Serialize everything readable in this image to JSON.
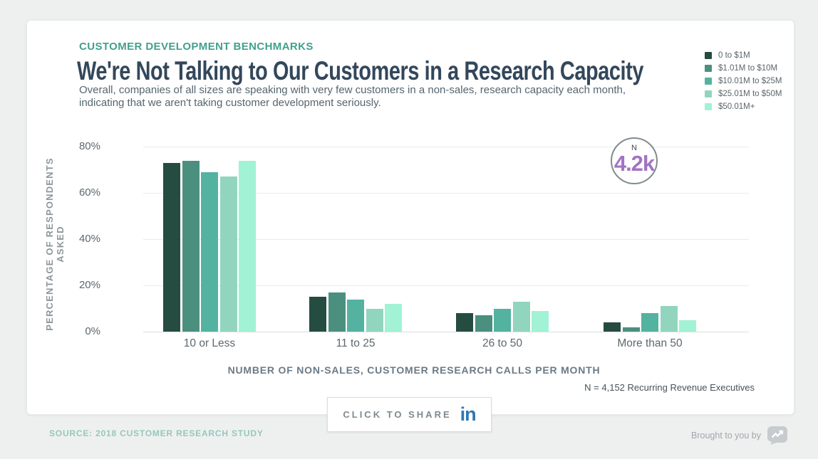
{
  "card": {
    "kicker": "CUSTOMER DEVELOPMENT BENCHMARKS",
    "title": "We're Not Talking to Our Customers in a Research Capacity",
    "subtitle_lines": [
      "Overall, companies of all sizes are speaking with very few customers in a non-sales, research capacity each month,",
      "indicating that we aren't taking customer development seriously."
    ]
  },
  "chart_data": {
    "type": "bar",
    "title": "We're Not Talking to Our Customers in a Research Capacity",
    "categories": [
      "10 or Less",
      "11 to 25",
      "26 to 50",
      "More than 50"
    ],
    "series": [
      {
        "name": "0 to $1M",
        "color": "#254c41",
        "values": [
          73,
          15,
          8,
          4
        ]
      },
      {
        "name": "$1.01M to $10M",
        "color": "#4b8f7f",
        "values": [
          74,
          17,
          7,
          2
        ]
      },
      {
        "name": "$10.01M to $25M",
        "color": "#54b2a1",
        "values": [
          69,
          14,
          10,
          8
        ]
      },
      {
        "name": "$25.01M to $50M",
        "color": "#92d5bf",
        "values": [
          67,
          10,
          13,
          11
        ]
      },
      {
        "name": "$50.01M+",
        "color": "#a2f2d5",
        "values": [
          74,
          12,
          9,
          5
        ]
      }
    ],
    "xlabel": "NUMBER OF NON-SALES, CUSTOMER RESEARCH CALLS PER MONTH",
    "ylabel": "PERCENTAGE OF RESPONDENTS ASKED",
    "ylim": [
      0,
      80
    ],
    "yticks": [
      "0%",
      "20%",
      "40%",
      "60%",
      "80%"
    ],
    "grid": true,
    "legend_position": "top-right"
  },
  "badge": {
    "label": "N",
    "value": "4.2k"
  },
  "sample_note": "N = 4,152 Recurring Revenue Executives",
  "share": {
    "label": "CLICK TO SHARE",
    "icon": "linkedin-icon"
  },
  "footer": {
    "source": "SOURCE: 2018 CUSTOMER RESEARCH STUDY",
    "attribution": "Brought to you by",
    "logo": "profitwell-logo"
  },
  "colors": {
    "accent_teal": "#42a08d",
    "title_navy": "#33475b",
    "badge_purple": "#a273c4",
    "linkedin_blue": "#2e77b5",
    "source_teal": "#95c8bb"
  }
}
